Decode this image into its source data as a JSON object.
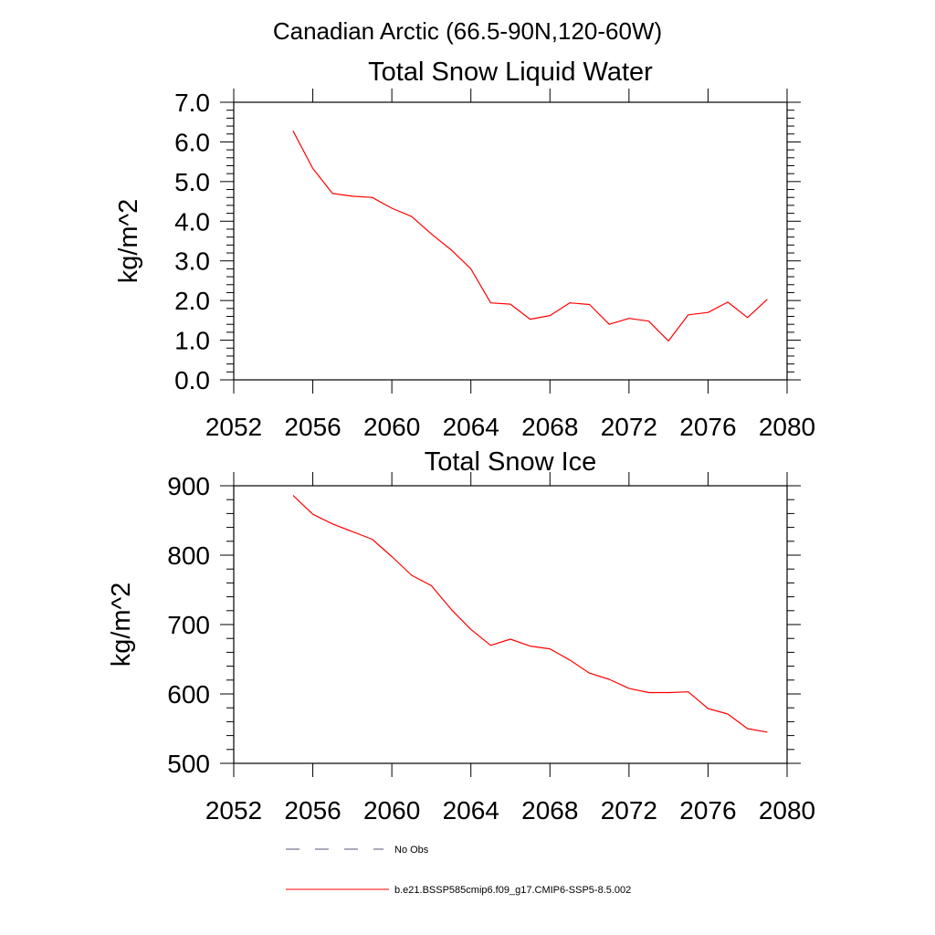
{
  "figure_title": "Canadian Arctic (66.5-90N,120-60W)",
  "colors": {
    "model_line": "#ff0000",
    "obs_line": "#555577",
    "frame": "#000000"
  },
  "legend": {
    "items": [
      {
        "label": "No Obs",
        "style": "dashed",
        "color": "#555577"
      },
      {
        "label": "b.e21.BSSP585cmip6.f09_g17.CMIP6-SSP5-8.5.002",
        "style": "solid",
        "color": "#ff0000"
      }
    ]
  },
  "chart_data": [
    {
      "type": "line",
      "title": "Total Snow Liquid Water",
      "xlabel": "",
      "ylabel": "kg/m^2",
      "xlim": [
        2052,
        2080
      ],
      "ylim": [
        0,
        7
      ],
      "xticks": [
        2052,
        2056,
        2060,
        2064,
        2068,
        2072,
        2076,
        2080
      ],
      "xtick_labels": [
        "2052",
        "2056",
        "2060",
        "2064",
        "2068",
        "2072",
        "2076",
        "2080"
      ],
      "yticks": [
        0,
        1,
        2,
        3,
        4,
        5,
        6,
        7
      ],
      "ytick_labels": [
        "0.0",
        "1.0",
        "2.0",
        "3.0",
        "4.0",
        "5.0",
        "6.0",
        "7.0"
      ],
      "grid": false,
      "series": [
        {
          "name": "b.e21.BSSP585cmip6.f09_g17.CMIP6-SSP5-8.5.002",
          "x": [
            2055,
            2056,
            2057,
            2058,
            2059,
            2060,
            2061,
            2062,
            2063,
            2064,
            2065,
            2066,
            2067,
            2068,
            2069,
            2070,
            2071,
            2072,
            2073,
            2074,
            2075,
            2076,
            2077,
            2078,
            2079
          ],
          "y": [
            6.28,
            5.33,
            4.7,
            4.63,
            4.6,
            4.33,
            4.12,
            3.68,
            3.28,
            2.8,
            1.94,
            1.91,
            1.53,
            1.62,
            1.94,
            1.9,
            1.4,
            1.55,
            1.48,
            0.98,
            1.64,
            1.7,
            1.96,
            1.57,
            2.03
          ]
        }
      ]
    },
    {
      "type": "line",
      "title": "Total Snow Ice",
      "xlabel": "",
      "ylabel": "kg/m^2",
      "xlim": [
        2052,
        2080
      ],
      "ylim": [
        500,
        900
      ],
      "xticks": [
        2052,
        2056,
        2060,
        2064,
        2068,
        2072,
        2076,
        2080
      ],
      "xtick_labels": [
        "2052",
        "2056",
        "2060",
        "2064",
        "2068",
        "2072",
        "2076",
        "2080"
      ],
      "yticks": [
        500,
        600,
        700,
        800,
        900
      ],
      "ytick_labels": [
        "500",
        "600",
        "700",
        "800",
        "900"
      ],
      "grid": false,
      "series": [
        {
          "name": "b.e21.BSSP585cmip6.f09_g17.CMIP6-SSP5-8.5.002",
          "x": [
            2055,
            2056,
            2057,
            2058,
            2059,
            2060,
            2061,
            2062,
            2063,
            2064,
            2065,
            2066,
            2067,
            2068,
            2069,
            2070,
            2071,
            2072,
            2073,
            2074,
            2075,
            2076,
            2077,
            2078,
            2079
          ],
          "y": [
            886,
            859,
            845,
            834,
            823,
            798,
            771,
            756,
            722,
            693,
            670,
            679,
            669,
            665,
            649,
            630,
            621,
            608,
            602,
            602,
            603,
            579,
            571,
            550,
            545
          ]
        }
      ]
    }
  ]
}
